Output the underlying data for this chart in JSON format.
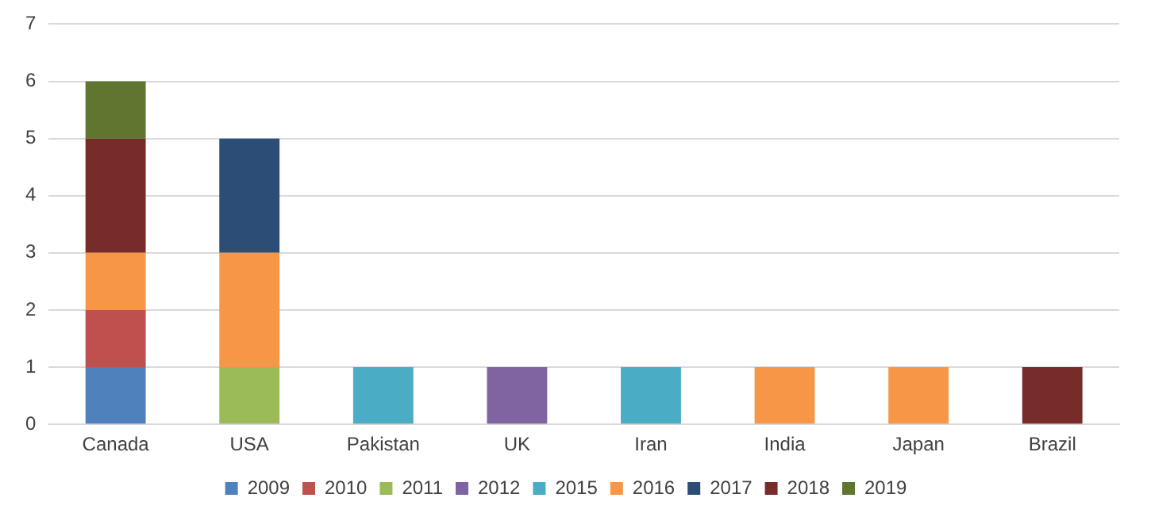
{
  "chart_data": {
    "type": "bar",
    "stacked": true,
    "categories": [
      "Canada",
      "USA",
      "Pakistan",
      "UK",
      "Iran",
      "India",
      "Japan",
      "Brazil"
    ],
    "series": [
      {
        "name": "2009",
        "color": "#4f81bd",
        "values": [
          1,
          null,
          null,
          null,
          null,
          null,
          null,
          null
        ]
      },
      {
        "name": "2010",
        "color": "#c0504d",
        "values": [
          1,
          null,
          null,
          null,
          null,
          null,
          null,
          null
        ]
      },
      {
        "name": "2011",
        "color": "#9bbb59",
        "values": [
          null,
          1,
          null,
          null,
          null,
          null,
          null,
          null
        ]
      },
      {
        "name": "2012",
        "color": "#8064a2",
        "values": [
          null,
          null,
          null,
          1,
          null,
          null,
          null,
          null
        ]
      },
      {
        "name": "2015",
        "color": "#4bacc6",
        "values": [
          null,
          null,
          1,
          null,
          1,
          null,
          null,
          null
        ]
      },
      {
        "name": "2016",
        "color": "#f79646",
        "values": [
          1,
          2,
          null,
          null,
          null,
          1,
          1,
          null
        ]
      },
      {
        "name": "2017",
        "color": "#2c4d75",
        "values": [
          null,
          2,
          null,
          null,
          null,
          null,
          null,
          null
        ]
      },
      {
        "name": "2018",
        "color": "#772c2a",
        "values": [
          2,
          null,
          null,
          null,
          null,
          null,
          null,
          1
        ]
      },
      {
        "name": "2019",
        "color": "#5f7530",
        "values": [
          1,
          null,
          null,
          null,
          null,
          null,
          null,
          null
        ]
      }
    ],
    "ylim": [
      0,
      7
    ],
    "yticks": [
      0,
      1,
      2,
      3,
      4,
      5,
      6,
      7
    ],
    "grid": "y",
    "legend": "bottom"
  }
}
